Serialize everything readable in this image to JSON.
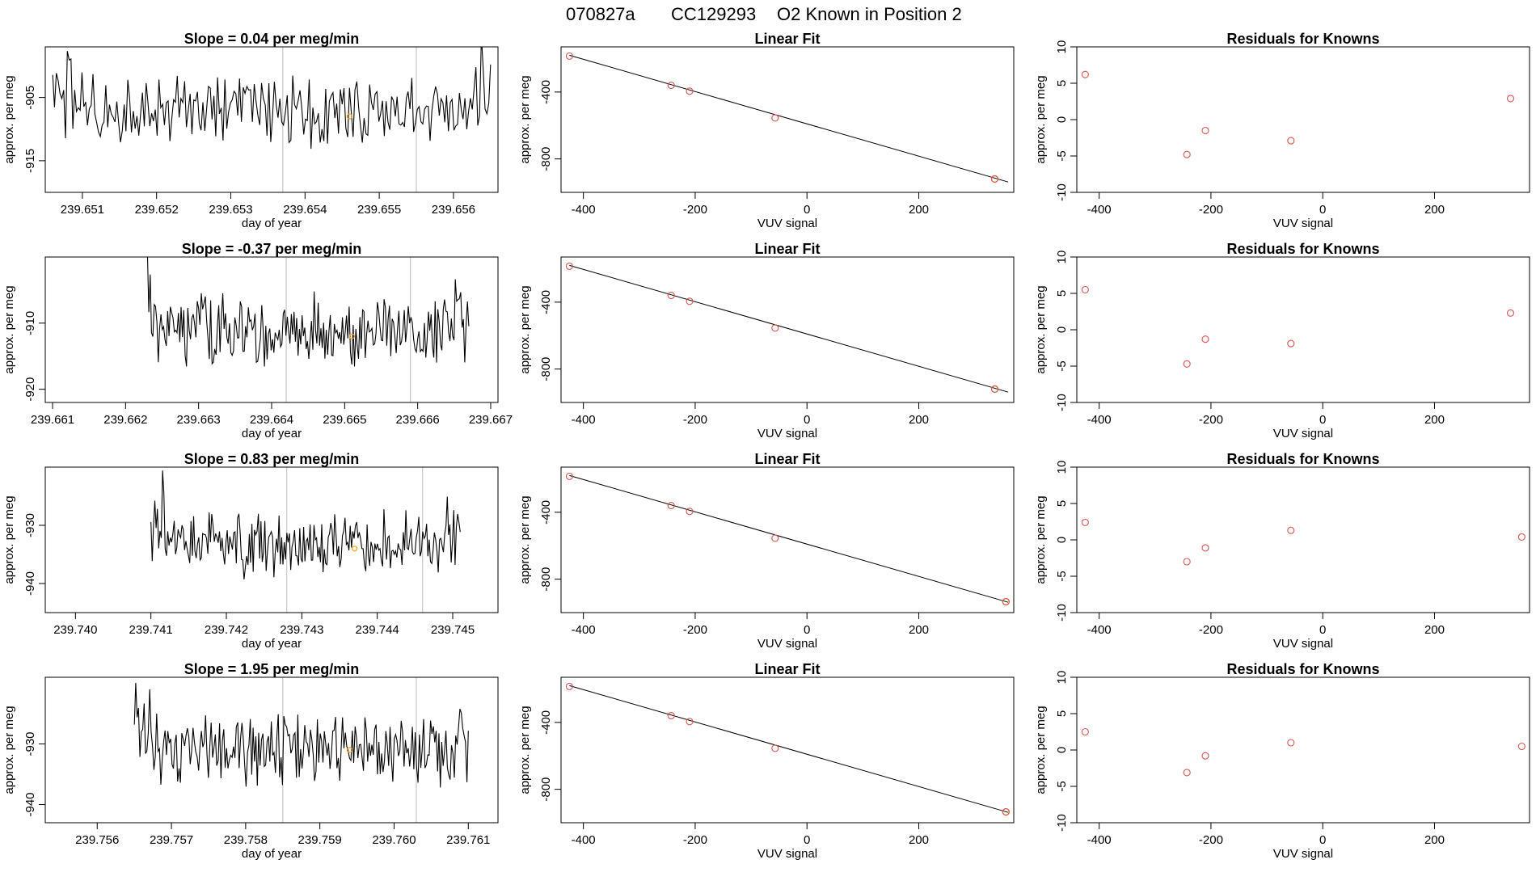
{
  "header": {
    "run_id": "070827a",
    "cylinder": "CC129293",
    "description": "O2 Known in Position  2"
  },
  "colors": {
    "trace": "#000000",
    "marker_gray": "#c8c8c8",
    "known_point": "#d9534f",
    "highlight_point": "#f0a020"
  },
  "chart_data": [
    {
      "type": "line",
      "title": "Slope =  0.04  per meg/min",
      "xlabel": "day of year",
      "ylabel": "approx. per meg",
      "xlim": [
        239.6505,
        239.6566
      ],
      "ylim": [
        -920,
        -897
      ],
      "xticks": [
        "239.651",
        "239.652",
        "239.653",
        "239.654",
        "239.655",
        "239.656"
      ],
      "xtick_values": [
        239.651,
        239.652,
        239.653,
        239.654,
        239.655,
        239.656
      ],
      "yticks": [
        "-905",
        "-915"
      ],
      "ytick_values": [
        -905,
        -915
      ],
      "vlines": [
        239.6537,
        239.6555
      ],
      "highlight": {
        "x": 239.6546,
        "y": -908
      },
      "trace": {
        "x_start": 239.6506,
        "x_end": 239.6565,
        "base": -907,
        "amp": 4
      }
    },
    {
      "type": "scatter",
      "title": "Linear Fit",
      "xlabel": "VUV signal",
      "ylabel": "approx. per meg",
      "xlim": [
        -440,
        370
      ],
      "ylim": [
        -1000,
        -130
      ],
      "xticks": [
        "-400",
        "-200",
        "0",
        "200"
      ],
      "xtick_values": [
        -400,
        -200,
        0,
        200
      ],
      "yticks": [
        "-400",
        "-800"
      ],
      "ytick_values": [
        -400,
        -800
      ],
      "x": [
        -425,
        -243,
        -210,
        -57,
        336
      ],
      "y": [
        -185,
        -360,
        -395,
        -555,
        -920
      ],
      "highlight_index": 4,
      "fit": {
        "x": [
          -425,
          360
        ],
        "y": [
          -180,
          -938
        ]
      }
    },
    {
      "type": "scatter",
      "title": "Residuals for Knowns",
      "xlabel": "VUV signal",
      "ylabel": "approx. per meg",
      "xlim": [
        -440,
        370
      ],
      "ylim": [
        -10,
        10
      ],
      "xticks": [
        "-400",
        "-200",
        "0",
        "200"
      ],
      "xtick_values": [
        -400,
        -200,
        0,
        200
      ],
      "yticks": [
        "10",
        "5",
        "0",
        "-5",
        "-10"
      ],
      "ytick_values": [
        10,
        5,
        0,
        -5,
        -10
      ],
      "x": [
        -425,
        -243,
        -210,
        -57,
        336
      ],
      "y": [
        6.2,
        -4.8,
        -1.5,
        -2.9,
        2.9
      ]
    },
    {
      "type": "line",
      "title": "Slope =  -0.37  per meg/min",
      "xlabel": "day of year",
      "ylabel": "approx. per meg",
      "xlim": [
        239.6609,
        239.6671
      ],
      "ylim": [
        -922,
        -900
      ],
      "xticks": [
        "239.661",
        "239.662",
        "239.663",
        "239.664",
        "239.665",
        "239.666",
        "239.667"
      ],
      "xtick_values": [
        239.661,
        239.662,
        239.663,
        239.664,
        239.665,
        239.666,
        239.667
      ],
      "yticks": [
        "-910",
        "-920"
      ],
      "ytick_values": [
        -910,
        -920
      ],
      "vlines": [
        239.6642,
        239.6659
      ],
      "highlight": {
        "x": 239.6651,
        "y": -912
      },
      "trace": {
        "x_start": 239.6623,
        "x_end": 239.6667,
        "base": -911,
        "amp": 4
      }
    },
    {
      "type": "scatter",
      "title": "Linear Fit",
      "xlabel": "VUV signal",
      "ylabel": "approx. per meg",
      "xlim": [
        -440,
        370
      ],
      "ylim": [
        -1000,
        -130
      ],
      "xticks": [
        "-400",
        "-200",
        "0",
        "200"
      ],
      "xtick_values": [
        -400,
        -200,
        0,
        200
      ],
      "yticks": [
        "-400",
        "-800"
      ],
      "ytick_values": [
        -400,
        -800
      ],
      "x": [
        -425,
        -243,
        -210,
        -57,
        336
      ],
      "y": [
        -185,
        -360,
        -395,
        -555,
        -920
      ],
      "highlight_index": 4,
      "fit": {
        "x": [
          -425,
          360
        ],
        "y": [
          -180,
          -938
        ]
      }
    },
    {
      "type": "scatter",
      "title": "Residuals for Knowns",
      "xlabel": "VUV signal",
      "ylabel": "approx. per meg",
      "xlim": [
        -440,
        370
      ],
      "ylim": [
        -10,
        10
      ],
      "xticks": [
        "-400",
        "-200",
        "0",
        "200"
      ],
      "xtick_values": [
        -400,
        -200,
        0,
        200
      ],
      "yticks": [
        "10",
        "5",
        "0",
        "-5",
        "-10"
      ],
      "ytick_values": [
        10,
        5,
        0,
        -5,
        -10
      ],
      "x": [
        -425,
        -243,
        -210,
        -57,
        336
      ],
      "y": [
        5.5,
        -4.7,
        -1.3,
        -1.9,
        2.3
      ]
    },
    {
      "type": "line",
      "title": "Slope =  0.83  per meg/min",
      "xlabel": "day of year",
      "ylabel": "approx. per meg",
      "xlim": [
        239.7396,
        239.7456
      ],
      "ylim": [
        -945,
        -920
      ],
      "xticks": [
        "239.740",
        "239.741",
        "239.742",
        "239.743",
        "239.744",
        "239.745"
      ],
      "xtick_values": [
        239.74,
        239.741,
        239.742,
        239.743,
        239.744,
        239.745
      ],
      "yticks": [
        "-930",
        "-940"
      ],
      "ytick_values": [
        -930,
        -940
      ],
      "vlines": [
        239.7428,
        239.7446
      ],
      "highlight": {
        "x": 239.7437,
        "y": -934
      },
      "trace": {
        "x_start": 239.741,
        "x_end": 239.7451,
        "base": -933,
        "amp": 4
      }
    },
    {
      "type": "scatter",
      "title": "Linear Fit",
      "xlabel": "VUV signal",
      "ylabel": "approx. per meg",
      "xlim": [
        -440,
        370
      ],
      "ylim": [
        -1000,
        -130
      ],
      "xticks": [
        "-400",
        "-200",
        "0",
        "200"
      ],
      "xtick_values": [
        -400,
        -200,
        0,
        200
      ],
      "yticks": [
        "-400",
        "-800"
      ],
      "ytick_values": [
        -400,
        -800
      ],
      "x": [
        -425,
        -243,
        -210,
        -57,
        356
      ],
      "y": [
        -185,
        -360,
        -395,
        -555,
        -935
      ],
      "highlight_index": 4,
      "fit": {
        "x": [
          -425,
          360
        ],
        "y": [
          -180,
          -938
        ]
      }
    },
    {
      "type": "scatter",
      "title": "Residuals for Knowns",
      "xlabel": "VUV signal",
      "ylabel": "approx. per meg",
      "xlim": [
        -440,
        370
      ],
      "ylim": [
        -10,
        10
      ],
      "xticks": [
        "-400",
        "-200",
        "0",
        "200"
      ],
      "xtick_values": [
        -400,
        -200,
        0,
        200
      ],
      "yticks": [
        "10",
        "5",
        "0",
        "-5",
        "-10"
      ],
      "ytick_values": [
        10,
        5,
        0,
        -5,
        -10
      ],
      "x": [
        -425,
        -243,
        -210,
        -57,
        356
      ],
      "y": [
        2.4,
        -3.0,
        -1.1,
        1.3,
        0.4
      ]
    },
    {
      "type": "line",
      "title": "Slope =  1.95  per meg/min",
      "xlabel": "day of year",
      "ylabel": "approx. per meg",
      "xlim": [
        239.7553,
        239.7614
      ],
      "ylim": [
        -943,
        -919
      ],
      "xticks": [
        "239.756",
        "239.757",
        "239.758",
        "239.759",
        "239.760",
        "239.761"
      ],
      "xtick_values": [
        239.756,
        239.757,
        239.758,
        239.759,
        239.76,
        239.761
      ],
      "yticks": [
        "-930",
        "-940"
      ],
      "ytick_values": [
        -930,
        -940
      ],
      "vlines": [
        239.7585,
        239.7603
      ],
      "highlight": {
        "x": 239.7594,
        "y": -931
      },
      "trace": {
        "x_start": 239.7565,
        "x_end": 239.761,
        "base": -931,
        "amp": 4
      }
    },
    {
      "type": "scatter",
      "title": "Linear Fit",
      "xlabel": "VUV signal",
      "ylabel": "approx. per meg",
      "xlim": [
        -440,
        370
      ],
      "ylim": [
        -1000,
        -130
      ],
      "xticks": [
        "-400",
        "-200",
        "0",
        "200"
      ],
      "xtick_values": [
        -400,
        -200,
        0,
        200
      ],
      "yticks": [
        "-400",
        "-800"
      ],
      "ytick_values": [
        -400,
        -800
      ],
      "x": [
        -425,
        -243,
        -210,
        -57,
        356
      ],
      "y": [
        -185,
        -360,
        -395,
        -555,
        -935
      ],
      "highlight_index": 4,
      "fit": {
        "x": [
          -425,
          360
        ],
        "y": [
          -180,
          -938
        ]
      }
    },
    {
      "type": "scatter",
      "title": "Residuals for Knowns",
      "xlabel": "VUV signal",
      "ylabel": "approx. per meg",
      "xlim": [
        -440,
        370
      ],
      "ylim": [
        -10,
        10
      ],
      "xticks": [
        "-400",
        "-200",
        "0",
        "200"
      ],
      "xtick_values": [
        -400,
        -200,
        0,
        200
      ],
      "yticks": [
        "10",
        "5",
        "0",
        "-5",
        "-10"
      ],
      "ytick_values": [
        10,
        5,
        0,
        -5,
        -10
      ],
      "x": [
        -425,
        -243,
        -210,
        -57,
        356
      ],
      "y": [
        2.5,
        -3.1,
        -0.8,
        1.0,
        0.5
      ]
    }
  ]
}
